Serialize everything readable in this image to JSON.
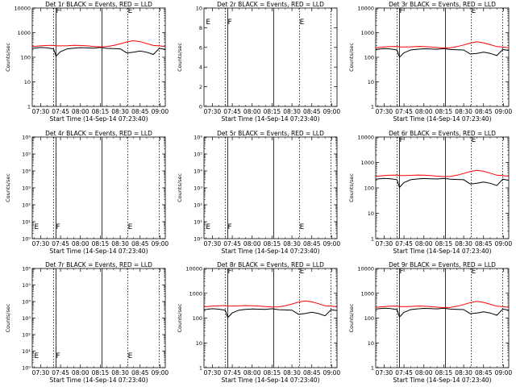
{
  "colors": {
    "events": "#000000",
    "lld": "#ff0000",
    "axes": "#000000",
    "background": "#ffffff"
  },
  "xaxis_label": "Start Time (14-Sep-14 07:23:40)",
  "ylabel": "Counts/sec",
  "xticks": [
    "07:30",
    "07:45",
    "08:00",
    "08:15",
    "08:30",
    "08:45",
    "09:00"
  ],
  "xtick_values_min": [
    30,
    45,
    60,
    75,
    90,
    105,
    120
  ],
  "xrange_min": [
    23.67,
    124
  ],
  "markers": {
    "solid": [
      41.6,
      76.3
    ],
    "dotted": [
      39.7,
      95.8,
      119.5
    ],
    "letters": [
      {
        "x": 41.0,
        "text": "F"
      },
      {
        "x": 95.2,
        "text": "E"
      }
    ]
  },
  "panels": [
    {
      "title": "Det 1r BLACK = Events, RED = LLD",
      "scale": "log",
      "ylim": [
        1,
        10000
      ],
      "yticks": [
        "1",
        "10",
        "100",
        "1000",
        "10000"
      ],
      "ytick_values": [
        1,
        10,
        100,
        1000,
        10000
      ],
      "marker_letters": [
        "F",
        "E"
      ],
      "has_data": true
    },
    {
      "title": "Det 2r BLACK = Events, RED = LLD",
      "scale": "lin",
      "ylim": [
        0,
        10
      ],
      "yticks": [
        "0",
        "2",
        "4",
        "6",
        "8",
        "10"
      ],
      "ytick_values": [
        0,
        2,
        4,
        6,
        8,
        10
      ],
      "marker_letters": [
        "E",
        "F",
        "E"
      ],
      "has_data": false
    },
    {
      "title": "Det 3r BLACK = Events, RED = LLD",
      "scale": "log",
      "ylim": [
        1,
        10000
      ],
      "yticks": [
        "1",
        "10",
        "100",
        "1000",
        "10000"
      ],
      "ytick_values": [
        1,
        10,
        100,
        1000,
        10000
      ],
      "marker_letters": [
        "F",
        "E"
      ],
      "has_data": true
    },
    {
      "title": "Det 4r BLACK = Events, RED = LLD",
      "scale": "log",
      "ylim": [
        1,
        1000000
      ],
      "yticks": [
        "10⁰",
        "10¹",
        "10²",
        "10³",
        "10⁴",
        "10⁵",
        "10⁶"
      ],
      "ytick_values": [
        1,
        10,
        100,
        1000,
        10000,
        100000,
        1000000
      ],
      "marker_letters": [
        "E",
        "F",
        "E"
      ],
      "has_data": false
    },
    {
      "title": "Det 5r BLACK = Events, RED = LLD",
      "scale": "log",
      "ylim": [
        1,
        1000000
      ],
      "yticks": [
        "10⁰",
        "10¹",
        "10²",
        "10³",
        "10⁴",
        "10⁵",
        "10⁶"
      ],
      "ytick_values": [
        1,
        10,
        100,
        1000,
        10000,
        100000,
        1000000
      ],
      "marker_letters": [
        "E",
        "F",
        "E"
      ],
      "has_data": false
    },
    {
      "title": "Det 6r BLACK = Events, RED = LLD",
      "scale": "log",
      "ylim": [
        1,
        10000
      ],
      "yticks": [
        "1",
        "10",
        "100",
        "1000",
        "10000"
      ],
      "ytick_values": [
        1,
        10,
        100,
        1000,
        10000
      ],
      "marker_letters": [
        "F",
        "E"
      ],
      "has_data": true
    },
    {
      "title": "Det 7r BLACK = Events, RED = LLD",
      "scale": "log",
      "ylim": [
        1,
        1000000
      ],
      "yticks": [
        "10⁰",
        "10¹",
        "10²",
        "10³",
        "10⁴",
        "10⁵",
        "10⁶"
      ],
      "ytick_values": [
        1,
        10,
        100,
        1000,
        10000,
        100000,
        1000000
      ],
      "marker_letters": [
        "E",
        "F",
        "E"
      ],
      "has_data": false
    },
    {
      "title": "Det 8r BLACK = Events, RED = LLD",
      "scale": "log",
      "ylim": [
        1,
        10000
      ],
      "yticks": [
        "1",
        "10",
        "100",
        "1000",
        "10000"
      ],
      "ytick_values": [
        1,
        10,
        100,
        1000,
        10000
      ],
      "marker_letters": [
        "F",
        "E"
      ],
      "has_data": true
    },
    {
      "title": "Det 9r BLACK = Events, RED = LLD",
      "scale": "log",
      "ylim": [
        1,
        10000
      ],
      "yticks": [
        "1",
        "10",
        "100",
        "1000",
        "10000"
      ],
      "ytick_values": [
        1,
        10,
        100,
        1000,
        10000
      ],
      "marker_letters": [
        "F",
        "E"
      ],
      "has_data": true
    }
  ],
  "chart_data": {
    "type": "line",
    "x_minutes_since_start": [
      23.67,
      30,
      35,
      39.7,
      41.6,
      45,
      50,
      55,
      60,
      65,
      70,
      75,
      80,
      85,
      90,
      95,
      100,
      105,
      110,
      115,
      119.5,
      124
    ],
    "series": [
      {
        "name": "Events",
        "values": [
          230,
          250,
          240,
          220,
          110,
          170,
          220,
          235,
          245,
          240,
          235,
          250,
          230,
          225,
          220,
          150,
          160,
          180,
          160,
          130,
          230,
          210
        ]
      },
      {
        "name": "LLD",
        "values": [
          270,
          290,
          300,
          305,
          290,
          290,
          295,
          305,
          300,
          290,
          275,
          265,
          270,
          300,
          350,
          420,
          470,
          430,
          360,
          300,
          290,
          270
        ]
      }
    ]
  }
}
